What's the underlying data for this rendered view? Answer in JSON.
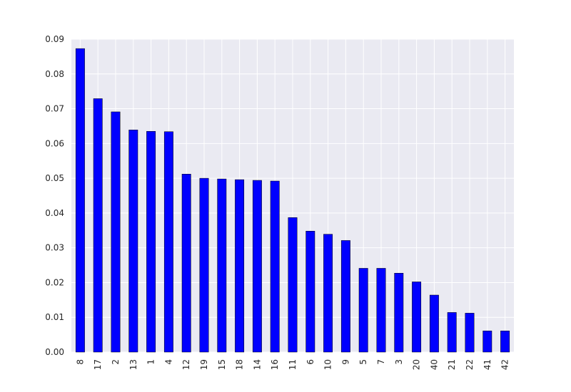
{
  "chart_data": {
    "type": "bar",
    "categories": [
      "8",
      "17",
      "2",
      "13",
      "1",
      "4",
      "12",
      "19",
      "15",
      "18",
      "14",
      "16",
      "11",
      "6",
      "10",
      "9",
      "5",
      "7",
      "3",
      "20",
      "40",
      "21",
      "22",
      "41",
      "42"
    ],
    "values": [
      0.0873,
      0.0729,
      0.0691,
      0.0639,
      0.0635,
      0.0634,
      0.0512,
      0.05,
      0.0498,
      0.0496,
      0.0494,
      0.0492,
      0.0387,
      0.0348,
      0.0339,
      0.0321,
      0.0241,
      0.0241,
      0.0227,
      0.0202,
      0.0164,
      0.0114,
      0.0112,
      0.0061,
      0.0061
    ],
    "title": "",
    "xlabel": "",
    "ylabel": "",
    "ylim": [
      0,
      0.09
    ],
    "yticks": [
      "0.00",
      "0.01",
      "0.02",
      "0.03",
      "0.04",
      "0.05",
      "0.06",
      "0.07",
      "0.08",
      "0.09"
    ],
    "grid": true,
    "bar_color": "#0000ff",
    "background_color": "#eaeaf2",
    "grid_color": "#ffffff",
    "xtick_rotation": "vertical"
  }
}
